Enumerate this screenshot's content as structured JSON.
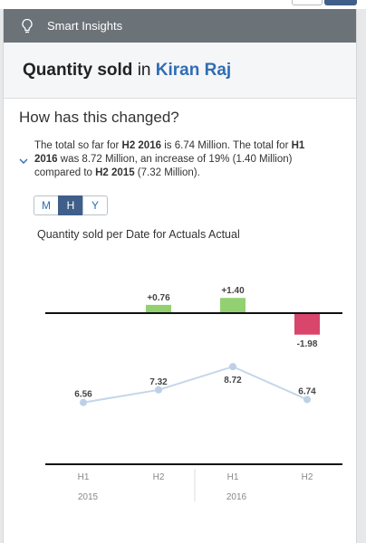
{
  "app": {
    "title": "Smart Insights",
    "icon": "lightbulb-icon"
  },
  "headline": {
    "measure": "Quantity sold",
    "connector": "in",
    "entity": "Kiran Raj"
  },
  "section": {
    "heading": "How has this changed?"
  },
  "insight": {
    "parts": [
      {
        "t": "The total so far for ",
        "b": false
      },
      {
        "t": "H2 2016",
        "b": true
      },
      {
        "t": " is 6.74 Million. The total for ",
        "b": false
      },
      {
        "t": "H1 2016",
        "b": true
      },
      {
        "t": " was 8.72 Million, an increase of 19% (1.40 Million) compared to ",
        "b": false
      },
      {
        "t": "H2 2015",
        "b": true
      },
      {
        "t": " (7.32 Million).",
        "b": false
      }
    ]
  },
  "granularity": {
    "options": [
      "M",
      "H",
      "Y"
    ],
    "selected": "H"
  },
  "chart_data": {
    "type": "line",
    "title": "Quantity sold per Date for Actuals Actual",
    "x": [
      "H1",
      "H2",
      "H1",
      "H2"
    ],
    "groups": [
      {
        "label": "2015",
        "span": [
          0,
          1
        ]
      },
      {
        "label": "2016",
        "span": [
          2,
          3
        ]
      }
    ],
    "values": [
      6.56,
      7.32,
      8.72,
      6.74
    ],
    "value_labels": [
      "6.56",
      "7.32",
      "8.72",
      "6.74"
    ],
    "deltas": [
      null,
      0.76,
      1.4,
      -1.98
    ],
    "delta_labels": [
      "",
      "+0.76",
      "+1.40",
      "-1.98"
    ],
    "colors": {
      "line": "#c5d6ea",
      "point": "#bcd0e8",
      "positive": "#93d072",
      "negative": "#d8466b"
    }
  }
}
